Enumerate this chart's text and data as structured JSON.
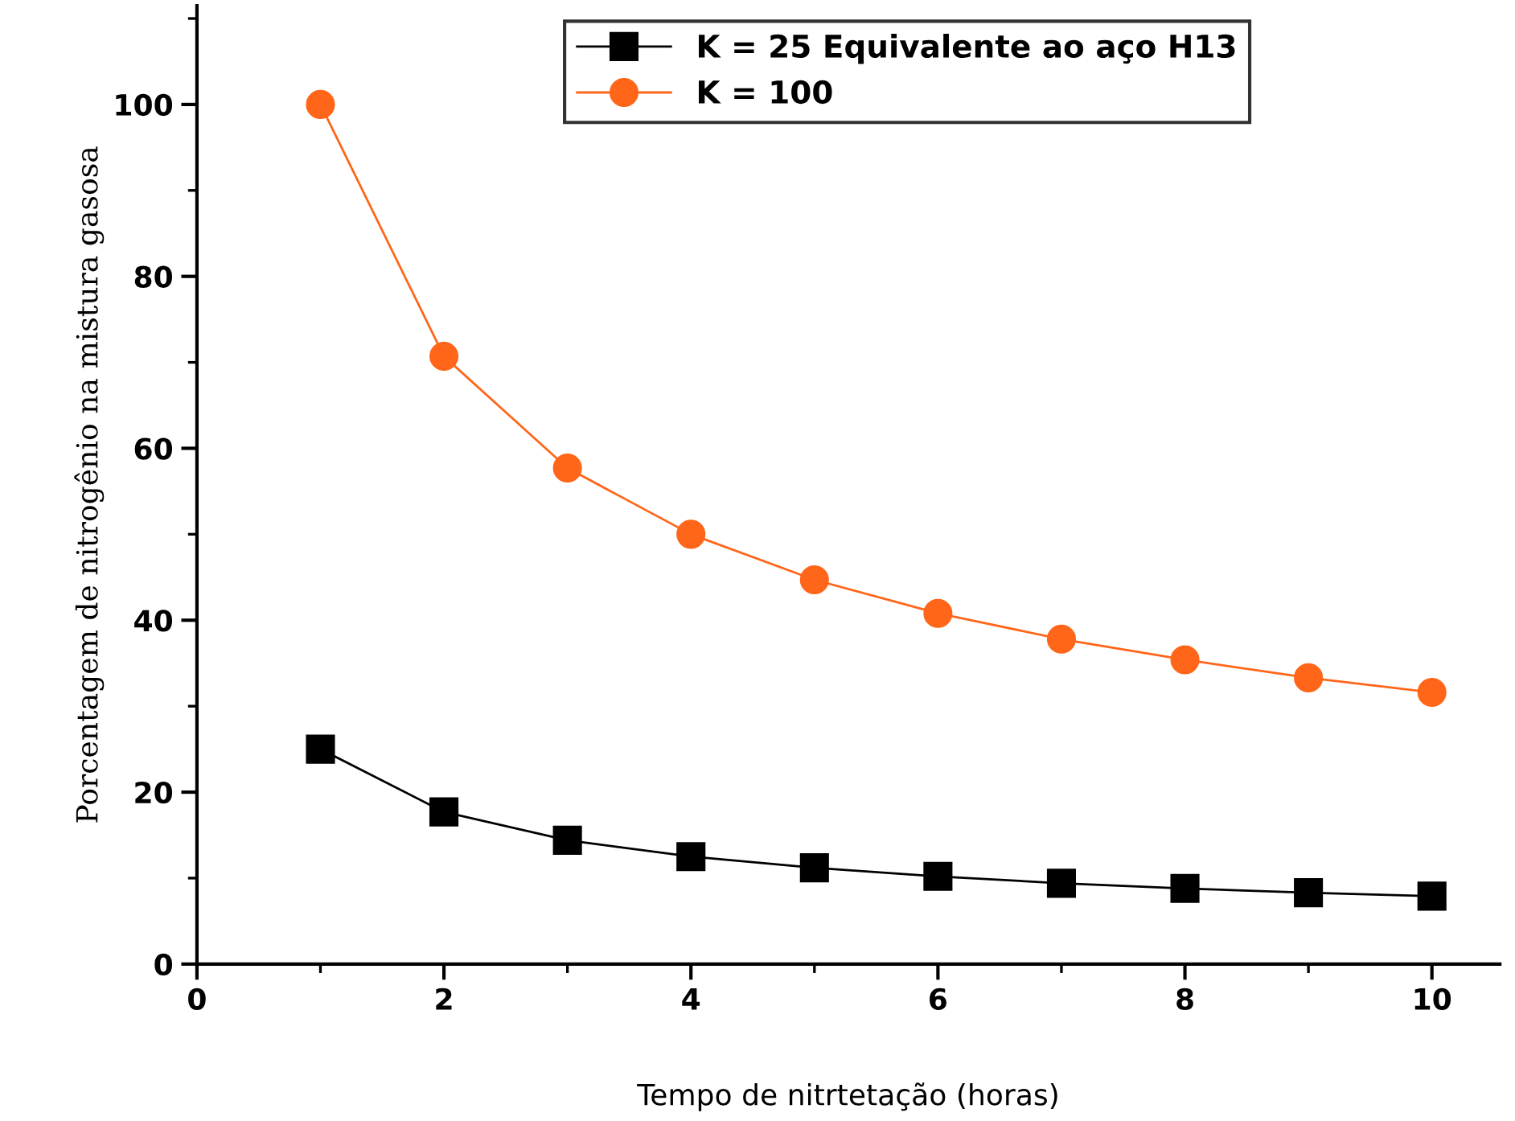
{
  "chart_data": {
    "type": "line",
    "xlabel": "Tempo de nitrtetação (horas)",
    "ylabel": "Porcentagem de nitrogênio na mistura gasosa",
    "x": [
      1,
      2,
      3,
      4,
      5,
      6,
      7,
      8,
      9,
      10
    ],
    "series": [
      {
        "name": "K = 25 Equivalente ao aço H13",
        "color": "#000000",
        "marker": "square",
        "values": [
          25,
          17.7,
          14.4,
          12.5,
          11.2,
          10.2,
          9.4,
          8.8,
          8.3,
          7.9
        ]
      },
      {
        "name": "K = 100",
        "color": "#ff6619",
        "marker": "circle",
        "values": [
          100,
          70.7,
          57.7,
          50,
          44.7,
          40.8,
          37.8,
          35.4,
          33.3,
          31.6
        ]
      }
    ],
    "xlim": [
      0,
      10.55
    ],
    "ylim": [
      0,
      111.5
    ],
    "xticks": [
      0,
      {
        "value": 1,
        "label": null
      },
      2,
      {
        "value": 3,
        "label": null
      },
      4,
      {
        "value": 5,
        "label": null
      },
      6,
      {
        "value": 7,
        "label": null
      },
      8,
      {
        "value": 9,
        "label": null
      },
      10
    ],
    "yticks": [
      0,
      {
        "value": 10,
        "label": null
      },
      20,
      {
        "value": 30,
        "label": null
      },
      40,
      {
        "value": 50,
        "label": null
      },
      60,
      {
        "value": 70,
        "label": null
      },
      80,
      {
        "value": 90,
        "label": null
      },
      100,
      {
        "value": 110,
        "label": null
      }
    ],
    "grid": false,
    "legend": "top right",
    "line_style": "solid"
  }
}
